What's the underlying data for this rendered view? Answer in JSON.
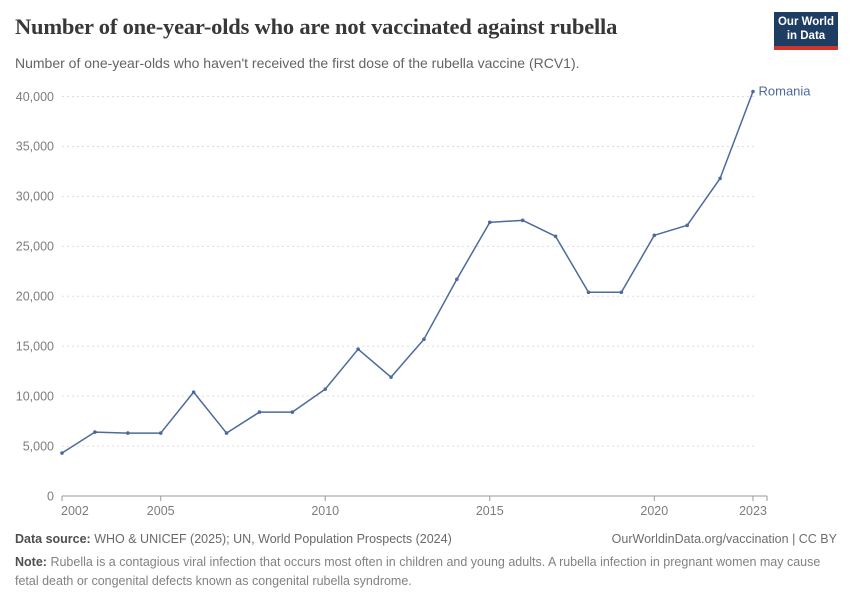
{
  "header": {
    "logo": {
      "line1": "Our World",
      "line2": "in Data",
      "bg_color": "#1d3d63",
      "accent_color": "#d0352b"
    }
  },
  "chart_data": {
    "type": "line",
    "title": "Number of one-year-olds who are not vaccinated against rubella",
    "subtitle": "Number of one-year-olds who haven't received the first dose of the rubella vaccine (RCV1).",
    "x": [
      2002,
      2003,
      2004,
      2005,
      2006,
      2007,
      2008,
      2009,
      2010,
      2011,
      2012,
      2013,
      2014,
      2015,
      2016,
      2017,
      2018,
      2019,
      2020,
      2021,
      2022,
      2023
    ],
    "series": [
      {
        "name": "Romania",
        "color": "#4c6a9c",
        "values": [
          4300,
          6400,
          6300,
          6300,
          10400,
          6300,
          8400,
          8400,
          10700,
          14700,
          11900,
          15700,
          21700,
          27400,
          27600,
          26000,
          20400,
          20400,
          26100,
          27100,
          31800,
          40500
        ]
      }
    ],
    "xlim": [
      2002,
      2023
    ],
    "ylim": [
      0,
      40000
    ],
    "xticks": [
      2002,
      2005,
      2010,
      2015,
      2020,
      2023
    ],
    "yticks": [
      0,
      5000,
      10000,
      15000,
      20000,
      25000,
      30000,
      35000,
      40000
    ],
    "grid": "horizontal-dashed",
    "legend_position": "end-of-line-label",
    "tick_color": "#7d7d7d",
    "grid_color": "#dddddd",
    "axis_color": "#9a9a9a"
  },
  "footer": {
    "datasource_label": "Data source:",
    "datasource_text": "WHO & UNICEF (2025); UN, World Population Prospects (2024)",
    "license_text": "OurWorldinData.org/vaccination | CC BY",
    "note_label": "Note:",
    "note_text": "Rubella is a contagious viral infection that occurs most often in children and young adults. A rubella infection in pregnant women may cause fetal death or congenital defects known as congenital rubella syndrome."
  }
}
